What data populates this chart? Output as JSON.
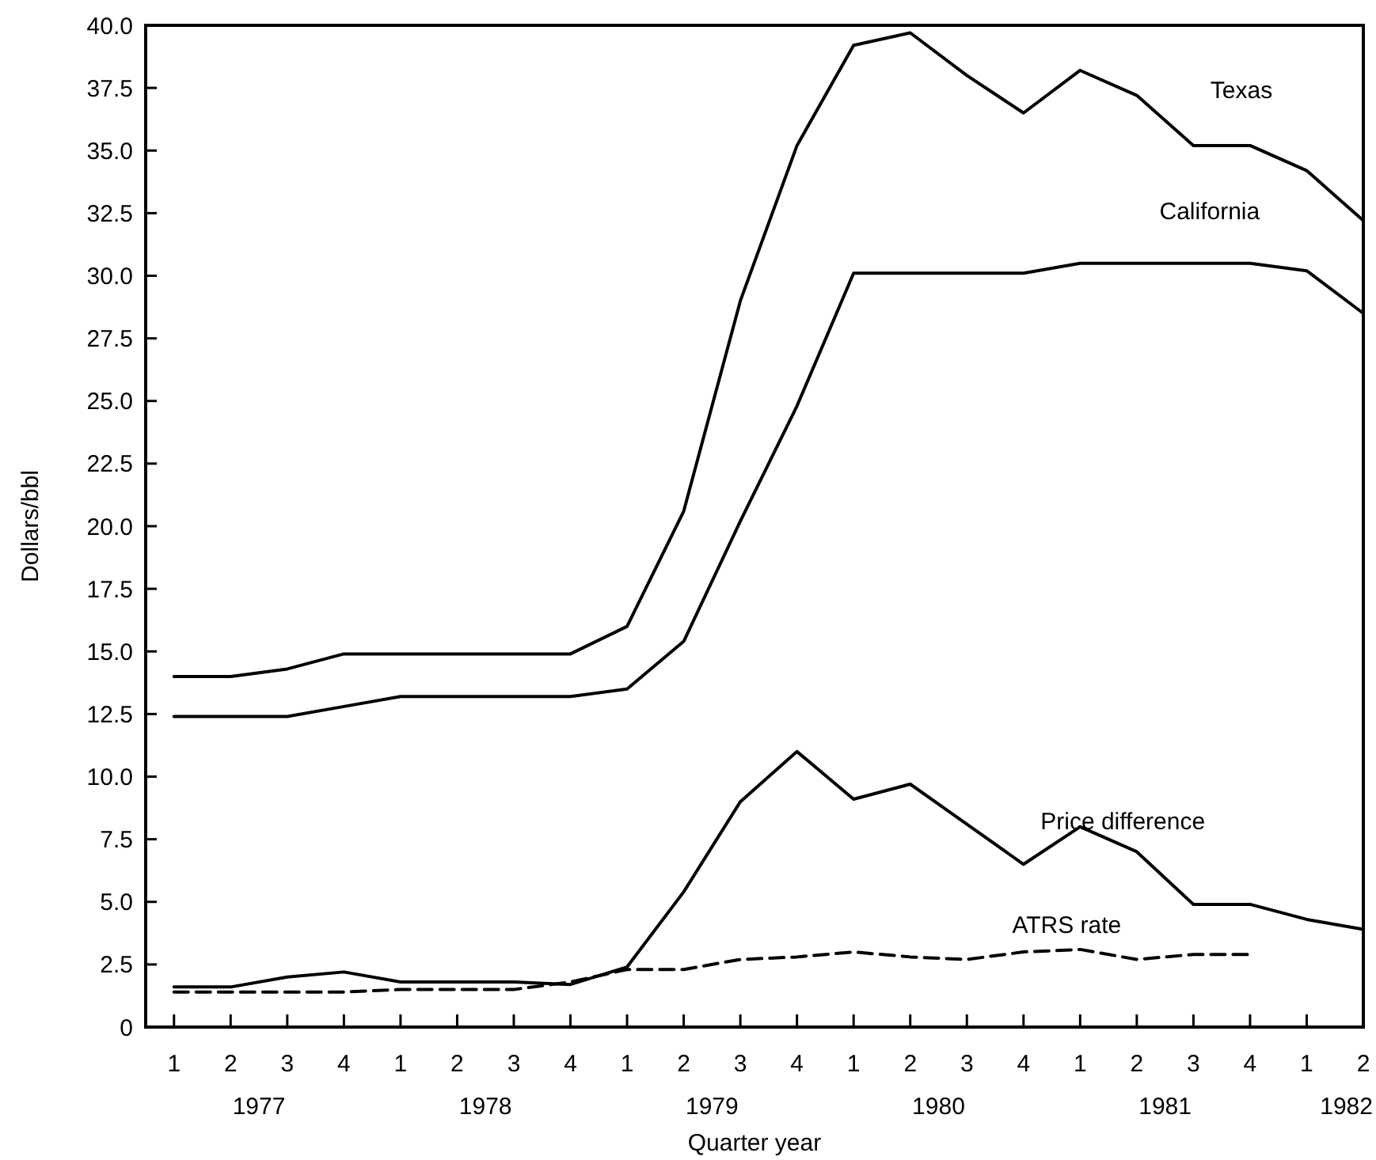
{
  "chart_data": {
    "type": "line",
    "xlabel": "Quarter year",
    "ylabel": "Dollars/bbl",
    "categories": [
      "1",
      "2",
      "3",
      "4",
      "1",
      "2",
      "3",
      "4",
      "1",
      "2",
      "3",
      "4",
      "1",
      "2",
      "3",
      "4",
      "1",
      "2",
      "3",
      "4",
      "1",
      "2"
    ],
    "ylim": [
      0,
      40
    ],
    "yticks": [
      0,
      2.5,
      {
        "value": 5,
        "label": "5.0"
      },
      7.5,
      {
        "value": 10,
        "label": "10.0"
      },
      12.5,
      {
        "value": 15,
        "label": "15.0"
      },
      17.5,
      {
        "value": 20,
        "label": "20.0"
      },
      22.5,
      {
        "value": 25,
        "label": "25.0"
      },
      27.5,
      {
        "value": 30,
        "label": "30.0"
      },
      32.5,
      {
        "value": 35,
        "label": "35.0"
      },
      37.5,
      {
        "value": 40,
        "label": "40.0"
      }
    ],
    "grid": false,
    "marker": "none",
    "annotations": [
      "1977",
      "1978",
      "1979",
      "1980",
      "1981",
      "1982"
    ],
    "series": [
      {
        "name": "Texas",
        "color": "#000000",
        "line_style": "solid",
        "values": [
          14.0,
          14.0,
          14.3,
          14.9,
          14.9,
          14.9,
          14.9,
          14.9,
          16.0,
          20.6,
          29.0,
          35.2,
          39.2,
          39.7,
          38.0,
          36.5,
          38.2,
          37.2,
          35.2,
          35.2,
          34.2,
          32.2
        ]
      },
      {
        "name": "California",
        "color": "#000000",
        "line_style": "solid",
        "values": [
          12.4,
          12.4,
          12.4,
          12.8,
          13.2,
          13.2,
          13.2,
          13.2,
          13.5,
          15.4,
          20.2,
          24.8,
          30.1,
          30.1,
          30.1,
          30.1,
          30.5,
          30.5,
          30.5,
          30.5,
          30.2,
          28.5
        ]
      },
      {
        "name": "Price difference",
        "color": "#000000",
        "line_style": "solid",
        "values": [
          1.6,
          1.6,
          2.0,
          2.2,
          1.8,
          1.8,
          1.8,
          1.7,
          2.4,
          5.4,
          9.0,
          11.0,
          9.1,
          9.7,
          8.1,
          6.5,
          8.0,
          7.0,
          4.9,
          4.9,
          4.3,
          3.9
        ]
      },
      {
        "name": "ATRS rate",
        "color": "#000000",
        "line_style": "dashed",
        "values": [
          1.4,
          1.4,
          1.4,
          1.4,
          1.5,
          1.5,
          1.5,
          1.8,
          2.3,
          2.3,
          2.7,
          2.8,
          3.0,
          2.8,
          2.7,
          3.0,
          3.1,
          2.7,
          2.9,
          2.9,
          null,
          null
        ]
      }
    ]
  }
}
